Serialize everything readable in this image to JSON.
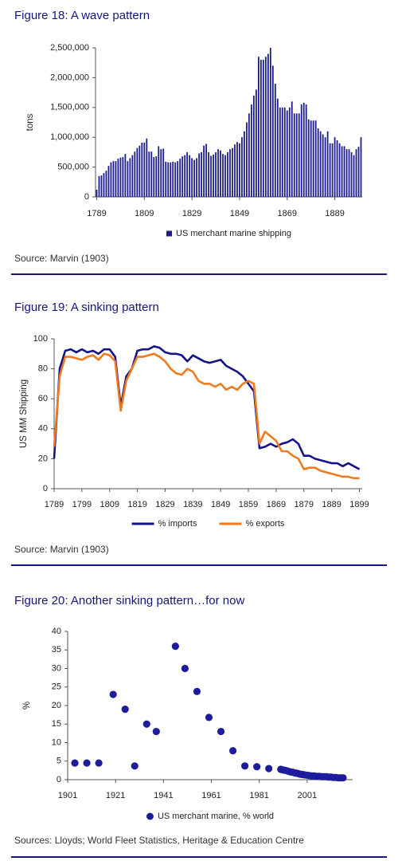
{
  "chart_data": [
    {
      "type": "bar",
      "title": "Figure 18: A wave pattern",
      "source": "Source: Marvin (1903)",
      "ylabel": "tons",
      "x": [
        1789,
        1790,
        1791,
        1792,
        1793,
        1794,
        1795,
        1796,
        1797,
        1798,
        1799,
        1800,
        1801,
        1802,
        1803,
        1804,
        1805,
        1806,
        1807,
        1808,
        1809,
        1810,
        1811,
        1812,
        1813,
        1814,
        1815,
        1816,
        1817,
        1818,
        1819,
        1820,
        1821,
        1822,
        1823,
        1824,
        1825,
        1826,
        1827,
        1828,
        1829,
        1830,
        1831,
        1832,
        1833,
        1834,
        1835,
        1836,
        1837,
        1838,
        1839,
        1840,
        1841,
        1842,
        1843,
        1844,
        1845,
        1846,
        1847,
        1848,
        1849,
        1850,
        1851,
        1852,
        1853,
        1854,
        1855,
        1856,
        1857,
        1858,
        1859,
        1860,
        1861,
        1862,
        1863,
        1864,
        1865,
        1866,
        1867,
        1868,
        1869,
        1870,
        1871,
        1872,
        1873,
        1874,
        1875,
        1876,
        1877,
        1878,
        1879,
        1880,
        1881,
        1882,
        1883,
        1884,
        1885,
        1886,
        1887,
        1888,
        1889,
        1890,
        1891,
        1892,
        1893,
        1894,
        1895,
        1896,
        1897,
        1898,
        1899,
        1900
      ],
      "series": [
        {
          "name": "US merchant marine shipping",
          "color": "#1c1c8e",
          "values": [
            120000,
            350000,
            360000,
            400000,
            440000,
            520000,
            580000,
            600000,
            600000,
            640000,
            660000,
            670000,
            720000,
            600000,
            650000,
            700000,
            760000,
            820000,
            860000,
            910000,
            910000,
            980000,
            760000,
            760000,
            670000,
            680000,
            850000,
            800000,
            810000,
            590000,
            580000,
            580000,
            590000,
            580000,
            600000,
            640000,
            680000,
            700000,
            750000,
            700000,
            650000,
            620000,
            650000,
            730000,
            750000,
            860000,
            890000,
            750000,
            690000,
            710000,
            750000,
            800000,
            780000,
            720000,
            700000,
            750000,
            800000,
            820000,
            880000,
            920000,
            900000,
            1000000,
            1100000,
            1250000,
            1400000,
            1550000,
            1700000,
            1800000,
            2350000,
            2300000,
            2300000,
            2350000,
            2400000,
            2500000,
            2200000,
            1900000,
            1650000,
            1500000,
            1500000,
            1500000,
            1450000,
            1500000,
            1600000,
            1400000,
            1400000,
            1400000,
            1550000,
            1580000,
            1550000,
            1300000,
            1280000,
            1280000,
            1280000,
            1150000,
            1100000,
            1050000,
            1000000,
            1100000,
            900000,
            900000,
            1000000,
            950000,
            900000,
            850000,
            850000,
            800000,
            800000,
            750000,
            700000,
            800000,
            840000,
            1000000
          ]
        }
      ],
      "xlim": [
        1788.5,
        1900.5
      ],
      "xticks": [
        1789,
        1809,
        1829,
        1849,
        1869,
        1889
      ],
      "ylim": [
        0,
        2500000
      ],
      "yticks": [
        0,
        {
          "value": 500000,
          "label": "500,000"
        },
        {
          "value": 1000000,
          "label": "1,000,000"
        },
        {
          "value": 1500000,
          "label": "1,500,000"
        },
        {
          "value": 2000000,
          "label": "2,000,000"
        },
        {
          "value": 2500000,
          "label": "2,500,000"
        }
      ]
    },
    {
      "type": "line",
      "title": "Figure 19: A sinking pattern",
      "source": "Source: Marvin (1903)",
      "ylabel": "US MM Shipping",
      "x": [
        1789,
        1791,
        1793,
        1795,
        1797,
        1799,
        1801,
        1803,
        1805,
        1807,
        1809,
        1811,
        1813,
        1815,
        1817,
        1819,
        1821,
        1823,
        1825,
        1827,
        1829,
        1831,
        1833,
        1835,
        1837,
        1839,
        1841,
        1843,
        1845,
        1847,
        1849,
        1851,
        1853,
        1855,
        1857,
        1859,
        1861,
        1863,
        1865,
        1867,
        1869,
        1871,
        1873,
        1875,
        1877,
        1879,
        1881,
        1883,
        1885,
        1887,
        1889,
        1891,
        1893,
        1895,
        1897,
        1899
      ],
      "series": [
        {
          "name": "% imports",
          "color": "#14148a",
          "values": [
            20,
            80,
            92,
            93,
            91,
            93,
            91,
            92,
            90,
            93,
            93,
            88,
            55,
            75,
            80,
            92,
            93,
            93,
            95,
            94,
            91,
            90,
            90,
            89,
            85,
            89,
            87,
            85,
            84,
            85,
            86,
            82,
            80,
            78,
            75,
            70,
            65,
            27,
            28,
            30,
            28,
            30,
            31,
            33,
            30,
            22,
            22,
            20,
            19,
            18,
            17,
            17,
            15,
            17,
            15,
            13
          ]
        },
        {
          "name": "% exports",
          "color": "#f07a1e",
          "values": [
            28,
            75,
            88,
            88,
            87,
            86,
            88,
            89,
            86,
            90,
            89,
            85,
            52,
            72,
            80,
            88,
            88,
            89,
            90,
            88,
            85,
            80,
            77,
            76,
            80,
            78,
            72,
            70,
            70,
            68,
            70,
            66,
            68,
            66,
            70,
            72,
            70,
            30,
            38,
            35,
            32,
            25,
            25,
            22,
            20,
            13,
            14,
            14,
            12,
            11,
            10,
            9,
            8,
            8,
            7,
            7
          ]
        }
      ],
      "xlim": [
        1789,
        1900
      ],
      "xticks": [
        1789,
        1799,
        1809,
        1819,
        1829,
        1839,
        1849,
        1859,
        1869,
        1879,
        1889,
        1899
      ],
      "ylim": [
        0,
        100
      ],
      "yticks": [
        0,
        20,
        40,
        60,
        80,
        100
      ]
    },
    {
      "type": "scatter",
      "title": "Figure 20: Another sinking pattern…for now",
      "source": "Sources: Lloyds; World Fleet Statistics, Heritage & Education Centre",
      "ylabel": "%",
      "x": [
        1904,
        1909,
        1914,
        1920,
        1925,
        1929,
        1934,
        1938,
        1946,
        1950,
        1955,
        1960,
        1965,
        1970,
        1975,
        1980,
        1985,
        1990,
        1991,
        1992,
        1993,
        1994,
        1995,
        1996,
        1997,
        1998,
        1999,
        2000,
        2001,
        2002,
        2003,
        2004,
        2005,
        2006,
        2007,
        2008,
        2009,
        2010,
        2011,
        2012,
        2013,
        2014,
        2015,
        2016
      ],
      "series": [
        {
          "name": "US merchant marine, % world",
          "color": "#1c1c9c",
          "values": [
            4.5,
            4.5,
            4.5,
            23,
            19,
            3.7,
            15,
            13,
            36,
            30,
            23.8,
            16.8,
            13,
            7.8,
            3.7,
            3.5,
            3,
            2.8,
            2.6,
            2.5,
            2.3,
            2.1,
            2.0,
            1.8,
            1.7,
            1.5,
            1.4,
            1.3,
            1.2,
            1.1,
            1.0,
            1.0,
            0.9,
            0.9,
            0.8,
            0.8,
            0.8,
            0.7,
            0.7,
            0.6,
            0.6,
            0.5,
            0.5,
            0.5
          ]
        }
      ],
      "xlim": [
        1901,
        2020
      ],
      "xticks": [
        1901,
        1921,
        1941,
        1961,
        1981,
        2001
      ],
      "ylim": [
        0,
        40
      ],
      "yticks": [
        0,
        5,
        10,
        15,
        20,
        25,
        30,
        35,
        40
      ]
    }
  ]
}
